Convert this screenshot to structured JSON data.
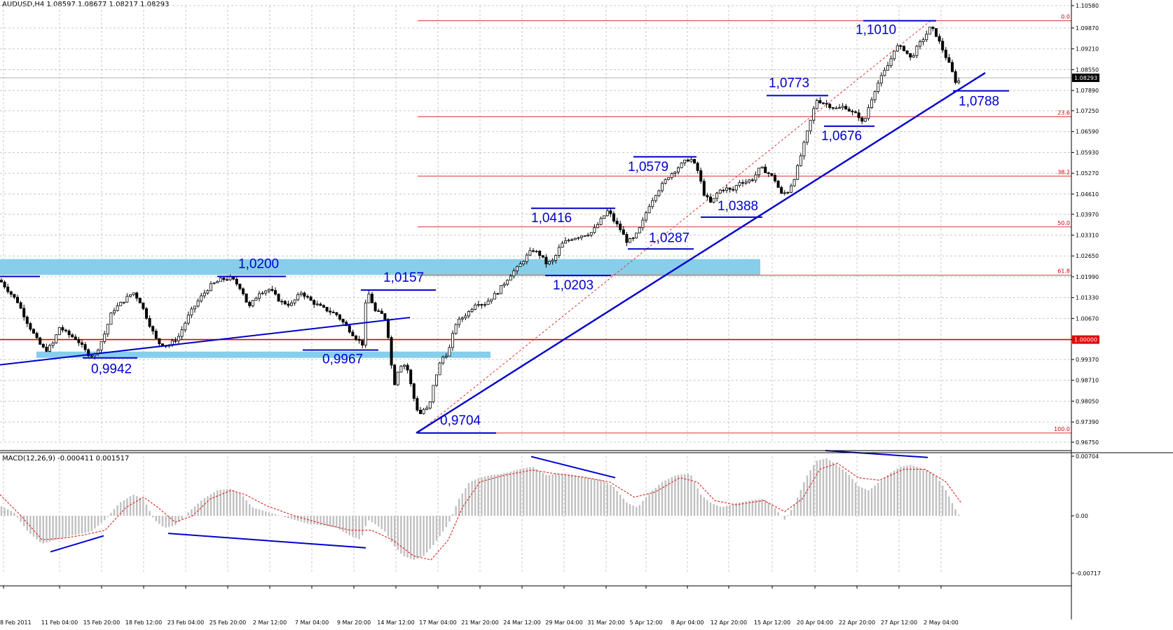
{
  "header": {
    "instrument": "AUDUSD,H4",
    "ohlc": "1.08597 1.08677 1.08217 1.08293",
    "macd": "MACD(12,26,9) -0.000411 0.001517"
  },
  "colors": {
    "annotation": "#0000cc",
    "fib": "#e03030",
    "zone": "#87ceeb",
    "hist": "#c0c0c0",
    "signal": "#e03030",
    "grid": "#c8c8c8"
  },
  "chart_data": [
    {
      "type": "candlestick",
      "title": "",
      "ylim": [
        0.9675,
        1.1058
      ],
      "price_ticks": [
        "1.10580",
        "1.09870",
        "1.09210",
        "1.08550",
        "1.07890",
        "1.07250",
        "1.06590",
        "1.05930",
        "1.05270",
        "1.04610",
        "1.03970",
        "1.03310",
        "1.02650",
        "1.01990",
        "1.01330",
        "1.00670",
        "1.00000",
        "0.99370",
        "0.98710",
        "0.98050",
        "0.97390",
        "0.96750"
      ],
      "current_price": "1.08293",
      "highlight_level": "1.00000",
      "x_tick_labels": [
        "8 Feb 2011",
        "11 Feb 04:00",
        "15 Feb 20:00",
        "18 Feb 12:00",
        "23 Feb 04:00",
        "25 Feb 20:00",
        "2 Mar 12:00",
        "7 Mar 04:00",
        "9 Mar 20:00",
        "14 Mar 12:00",
        "17 Mar 04:00",
        "21 Mar 20:00",
        "24 Mar 12:00",
        "29 Mar 04:00",
        "31 Mar 20:00",
        "5 Apr 12:00",
        "8 Apr 04:00",
        "12 Apr 20:00",
        "15 Apr 12:00",
        "20 Apr 04:00",
        "22 Apr 20:00",
        "27 Apr 12:00",
        "2 May 04:00"
      ],
      "close_path": [
        [
          0,
          1.0188
        ],
        [
          10,
          1.016
        ],
        [
          25,
          1.012
        ],
        [
          40,
          1.005
        ],
        [
          55,
          0.999
        ],
        [
          65,
          0.9965
        ],
        [
          75,
          0.9985
        ],
        [
          85,
          1.004
        ],
        [
          95,
          1.002
        ],
        [
          110,
          1.0
        ],
        [
          125,
          0.9955
        ],
        [
          135,
          0.995
        ],
        [
          148,
          1.001
        ],
        [
          160,
          1.009
        ],
        [
          170,
          1.011
        ],
        [
          180,
          1.013
        ],
        [
          190,
          1.015
        ],
        [
          200,
          1.012
        ],
        [
          215,
          1.004
        ],
        [
          225,
          0.999
        ],
        [
          240,
          0.998
        ],
        [
          255,
          1.001
        ],
        [
          270,
          1.008
        ],
        [
          285,
          1.013
        ],
        [
          300,
          1.017
        ],
        [
          315,
          1.019
        ],
        [
          330,
          1.0195
        ],
        [
          345,
          1.016
        ],
        [
          355,
          1.01
        ],
        [
          370,
          1.015
        ],
        [
          385,
          1.016
        ],
        [
          400,
          1.012
        ],
        [
          415,
          1.011
        ],
        [
          430,
          1.015
        ],
        [
          445,
          1.012
        ],
        [
          460,
          1.01
        ],
        [
          480,
          1.008
        ],
        [
          495,
          1.004
        ],
        [
          510,
          1.0
        ],
        [
          518,
          0.9985
        ],
        [
          523,
          1.015
        ],
        [
          528,
          1.014
        ],
        [
          535,
          1.009
        ],
        [
          545,
          1.008
        ],
        [
          552,
          1.006
        ],
        [
          557,
          0.994
        ],
        [
          563,
          0.986
        ],
        [
          570,
          0.992
        ],
        [
          580,
          0.992
        ],
        [
          590,
          0.982
        ],
        [
          598,
          0.976
        ],
        [
          605,
          0.978
        ],
        [
          612,
          0.978
        ],
        [
          620,
          0.987
        ],
        [
          630,
          0.994
        ],
        [
          640,
          0.996
        ],
        [
          650,
          1.005
        ],
        [
          660,
          1.007
        ],
        [
          670,
          1.009
        ],
        [
          680,
          1.012
        ],
        [
          690,
          1.011
        ],
        [
          700,
          1.013
        ],
        [
          710,
          1.015
        ],
        [
          720,
          1.018
        ],
        [
          730,
          1.021
        ],
        [
          740,
          1.023
        ],
        [
          750,
          1.026
        ],
        [
          760,
          1.0285
        ],
        [
          770,
          1.027
        ],
        [
          780,
          1.024
        ],
        [
          790,
          1.025
        ],
        [
          800,
          1.03
        ],
        [
          815,
          1.032
        ],
        [
          830,
          1.033
        ],
        [
          845,
          1.034
        ],
        [
          858,
          1.038
        ],
        [
          868,
          1.041
        ],
        [
          875,
          1.038
        ],
        [
          885,
          1.035
        ],
        [
          895,
          1.031
        ],
        [
          905,
          1.032
        ],
        [
          915,
          1.036
        ],
        [
          925,
          1.042
        ],
        [
          935,
          1.046
        ],
        [
          945,
          1.049
        ],
        [
          955,
          1.052
        ],
        [
          965,
          1.054
        ],
        [
          975,
          1.056
        ],
        [
          985,
          1.0575
        ],
        [
          995,
          1.054
        ],
        [
          1005,
          1.046
        ],
        [
          1015,
          1.043
        ],
        [
          1025,
          1.047
        ],
        [
          1035,
          1.048
        ],
        [
          1045,
          1.047
        ],
        [
          1055,
          1.05
        ],
        [
          1065,
          1.05
        ],
        [
          1075,
          1.051
        ],
        [
          1085,
          1.0545
        ],
        [
          1095,
          1.053
        ],
        [
          1105,
          1.051
        ],
        [
          1115,
          1.046
        ],
        [
          1125,
          1.047
        ],
        [
          1135,
          1.052
        ],
        [
          1145,
          1.06
        ],
        [
          1155,
          1.068
        ],
        [
          1165,
          1.076
        ],
        [
          1175,
          1.075
        ],
        [
          1185,
          1.074
        ],
        [
          1195,
          1.073
        ],
        [
          1205,
          1.074
        ],
        [
          1215,
          1.072
        ],
        [
          1225,
          1.071
        ],
        [
          1232,
          1.068
        ],
        [
          1240,
          1.074
        ],
        [
          1250,
          1.08
        ],
        [
          1260,
          1.084
        ],
        [
          1270,
          1.088
        ],
        [
          1278,
          1.093
        ],
        [
          1290,
          1.092
        ],
        [
          1300,
          1.089
        ],
        [
          1310,
          1.093
        ],
        [
          1320,
          1.096
        ],
        [
          1328,
          1.099
        ],
        [
          1335,
          1.097
        ],
        [
          1345,
          1.092
        ],
        [
          1355,
          1.087
        ],
        [
          1365,
          1.081
        ],
        [
          1372,
          1.0829
        ]
      ],
      "zones": [
        {
          "name": "upper-resistance-zone",
          "from": 1.0205,
          "to": 1.0255,
          "x1": 0,
          "x2": 1085
        },
        {
          "name": "lower-support-zone",
          "from": 0.9942,
          "to": 0.9962,
          "x1": 52,
          "x2": 700
        }
      ],
      "fibonacci": [
        {
          "label": "0.0",
          "price": 1.101
        },
        {
          "label": "23.6",
          "price": 1.0706
        },
        {
          "label": "38.2",
          "price": 1.0518
        },
        {
          "label": "50.0",
          "price": 1.0357
        },
        {
          "label": "61.8",
          "price": 1.0204
        },
        {
          "label": "100.0",
          "price": 0.9704
        }
      ],
      "annotations": [
        {
          "text": "1,0200",
          "price": 1.02
        },
        {
          "text": "1,0157",
          "price": 1.0157
        },
        {
          "text": "0,9942",
          "price": 0.9942
        },
        {
          "text": "0,9967",
          "price": 0.9967
        },
        {
          "text": "0,9704",
          "price": 0.9704
        },
        {
          "text": "1,0203",
          "price": 1.0203
        },
        {
          "text": "1,0416",
          "price": 1.0416
        },
        {
          "text": "1,0287",
          "price": 1.0287
        },
        {
          "text": "1,0579",
          "price": 1.0579
        },
        {
          "text": "1,0388",
          "price": 1.0388
        },
        {
          "text": "1,0773",
          "price": 1.0773
        },
        {
          "text": "1,0676",
          "price": 1.0676
        },
        {
          "text": "1,1010",
          "price": 1.101
        },
        {
          "text": "1,0788",
          "price": 1.0788
        }
      ]
    },
    {
      "type": "bar",
      "title": "",
      "ylim": [
        -0.00717,
        0.00704
      ],
      "y_ticks": [
        "0.00704",
        "0.00",
        "-0.00717"
      ],
      "macd_path": [
        [
          0,
          0.0012
        ],
        [
          20,
          0.0004
        ],
        [
          40,
          -0.002
        ],
        [
          60,
          -0.0035
        ],
        [
          80,
          -0.003
        ],
        [
          100,
          -0.0025
        ],
        [
          130,
          -0.002
        ],
        [
          150,
          -0.0005
        ],
        [
          170,
          0.0015
        ],
        [
          190,
          0.0025
        ],
        [
          205,
          0.002
        ],
        [
          220,
          -0.0005
        ],
        [
          235,
          -0.0015
        ],
        [
          250,
          -0.0012
        ],
        [
          270,
          0.0005
        ],
        [
          290,
          0.002
        ],
        [
          310,
          0.003
        ],
        [
          330,
          0.0032
        ],
        [
          345,
          0.0025
        ],
        [
          360,
          0.001
        ],
        [
          380,
          0.0005
        ],
        [
          400,
          0.0
        ],
        [
          420,
          -0.0005
        ],
        [
          440,
          -0.001
        ],
        [
          460,
          -0.0012
        ],
        [
          480,
          -0.0015
        ],
        [
          500,
          -0.0025
        ],
        [
          515,
          -0.003
        ],
        [
          525,
          -0.0005
        ],
        [
          535,
          -0.001
        ],
        [
          550,
          -0.002
        ],
        [
          560,
          -0.0035
        ],
        [
          575,
          -0.005
        ],
        [
          590,
          -0.0055
        ],
        [
          605,
          -0.005
        ],
        [
          620,
          -0.0035
        ],
        [
          640,
          -0.001
        ],
        [
          655,
          0.002
        ],
        [
          670,
          0.004
        ],
        [
          685,
          0.0045
        ],
        [
          700,
          0.0048
        ],
        [
          720,
          0.005
        ],
        [
          740,
          0.0055
        ],
        [
          760,
          0.0058
        ],
        [
          780,
          0.0048
        ],
        [
          800,
          0.005
        ],
        [
          820,
          0.0048
        ],
        [
          840,
          0.0045
        ],
        [
          860,
          0.0042
        ],
        [
          875,
          0.0035
        ],
        [
          895,
          0.0015
        ],
        [
          910,
          0.001
        ],
        [
          925,
          0.0025
        ],
        [
          945,
          0.004
        ],
        [
          965,
          0.0048
        ],
        [
          985,
          0.005
        ],
        [
          1000,
          0.0025
        ],
        [
          1015,
          0.0015
        ],
        [
          1030,
          0.001
        ],
        [
          1050,
          0.0015
        ],
        [
          1070,
          0.0018
        ],
        [
          1090,
          0.002
        ],
        [
          1105,
          0.001
        ],
        [
          1120,
          -0.0005
        ],
        [
          1135,
          0.0015
        ],
        [
          1150,
          0.0045
        ],
        [
          1165,
          0.0065
        ],
        [
          1180,
          0.0068
        ],
        [
          1195,
          0.006
        ],
        [
          1210,
          0.005
        ],
        [
          1225,
          0.0035
        ],
        [
          1240,
          0.003
        ],
        [
          1255,
          0.004
        ],
        [
          1270,
          0.005
        ],
        [
          1285,
          0.0058
        ],
        [
          1300,
          0.006
        ],
        [
          1320,
          0.0055
        ],
        [
          1335,
          0.0048
        ],
        [
          1350,
          0.003
        ],
        [
          1362,
          0.001
        ],
        [
          1372,
          -0.0004
        ]
      ],
      "signal_path": [
        [
          0,
          0.0025
        ],
        [
          30,
          0.0
        ],
        [
          60,
          -0.003
        ],
        [
          90,
          -0.0028
        ],
        [
          120,
          -0.0024
        ],
        [
          150,
          -0.0018
        ],
        [
          180,
          0.001
        ],
        [
          205,
          0.0022
        ],
        [
          225,
          0.001
        ],
        [
          250,
          -0.0008
        ],
        [
          275,
          0.0
        ],
        [
          300,
          0.002
        ],
        [
          330,
          0.003
        ],
        [
          350,
          0.0025
        ],
        [
          380,
          0.0012
        ],
        [
          420,
          0.0
        ],
        [
          460,
          -0.001
        ],
        [
          500,
          -0.0018
        ],
        [
          530,
          -0.0018
        ],
        [
          560,
          -0.003
        ],
        [
          590,
          -0.005
        ],
        [
          615,
          -0.0055
        ],
        [
          640,
          -0.003
        ],
        [
          660,
          0.001
        ],
        [
          685,
          0.004
        ],
        [
          720,
          0.0048
        ],
        [
          760,
          0.0054
        ],
        [
          790,
          0.005
        ],
        [
          830,
          0.0046
        ],
        [
          870,
          0.004
        ],
        [
          905,
          0.0022
        ],
        [
          935,
          0.0028
        ],
        [
          970,
          0.0045
        ],
        [
          995,
          0.004
        ],
        [
          1020,
          0.0018
        ],
        [
          1050,
          0.0013
        ],
        [
          1090,
          0.0018
        ],
        [
          1120,
          0.0005
        ],
        [
          1145,
          0.002
        ],
        [
          1170,
          0.0055
        ],
        [
          1195,
          0.0062
        ],
        [
          1225,
          0.0045
        ],
        [
          1255,
          0.0042
        ],
        [
          1290,
          0.0055
        ],
        [
          1320,
          0.0055
        ],
        [
          1350,
          0.004
        ],
        [
          1372,
          0.0015
        ]
      ],
      "divergence_lines": [
        {
          "x1": 72,
          "v1": -0.0045,
          "x2": 148,
          "v2": -0.0025
        },
        {
          "x1": 240,
          "v1": -0.0022,
          "x2": 522,
          "v2": -0.004
        },
        {
          "x1": 758,
          "v1": 0.007,
          "x2": 878,
          "v2": 0.0045
        },
        {
          "x1": 1178,
          "v1": 0.0077,
          "x2": 1324,
          "v2": 0.0069
        }
      ]
    }
  ]
}
